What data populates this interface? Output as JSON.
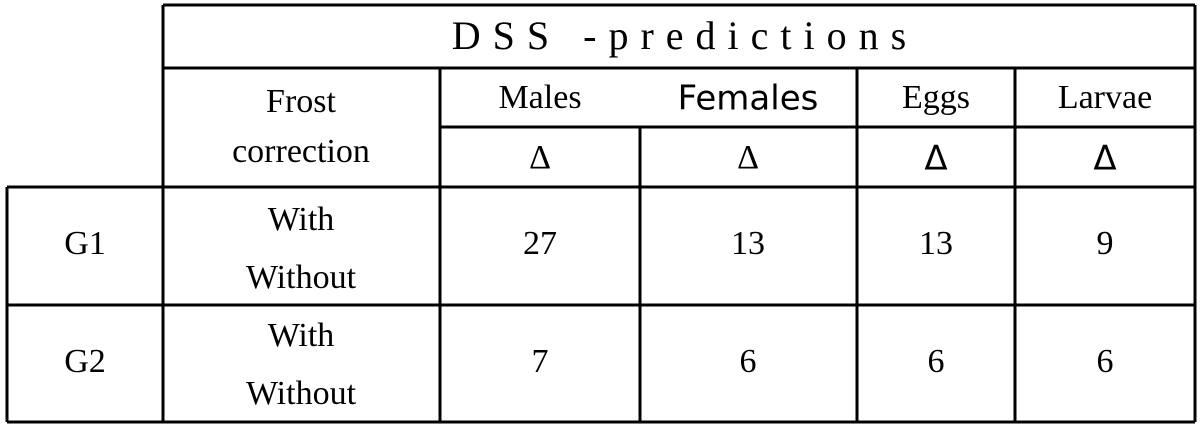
{
  "table": {
    "title": "DSS -predictions",
    "header": {
      "frost": [
        "Frost",
        "correction"
      ],
      "columns": [
        "Males",
        "Females",
        "Eggs",
        "Larvae"
      ],
      "sub": [
        "Δ",
        "Δ",
        "Δ",
        "Δ"
      ]
    },
    "rows": [
      {
        "group": "G1",
        "frost": [
          "With",
          "Without"
        ],
        "values": [
          27,
          13,
          13,
          9
        ]
      },
      {
        "group": "G2",
        "frost": [
          "With",
          "Without"
        ],
        "values": [
          7,
          6,
          6,
          6
        ]
      }
    ]
  }
}
